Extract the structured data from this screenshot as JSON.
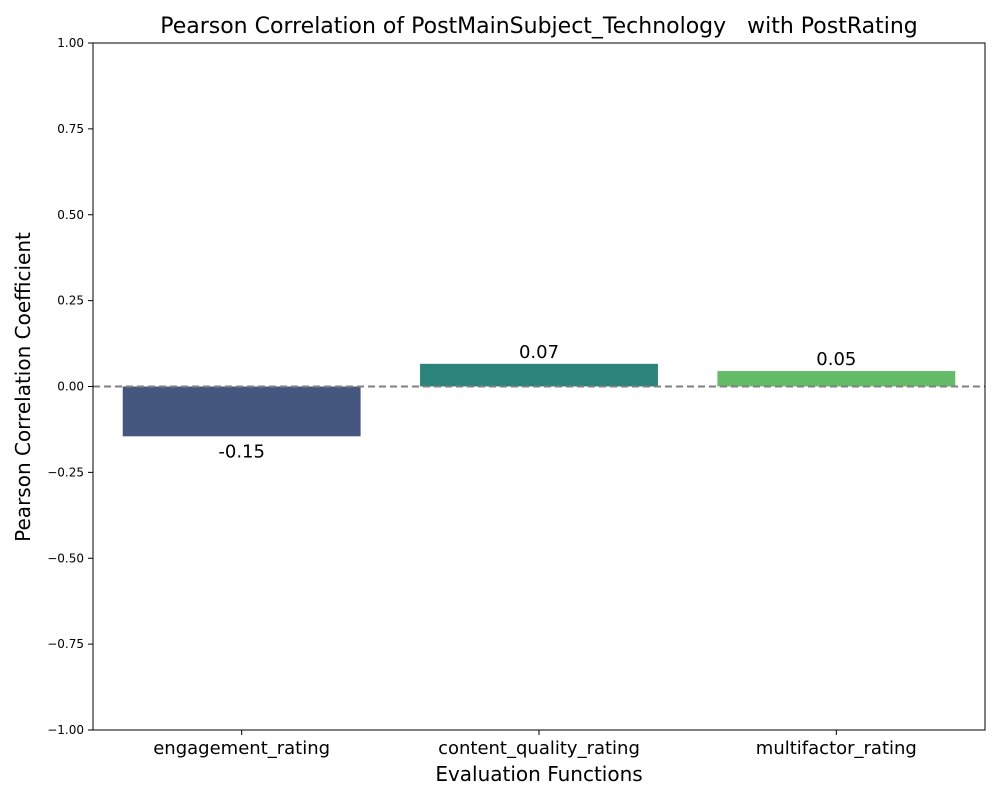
{
  "chart_data": {
    "type": "bar",
    "title": "Pearson Correlation of PostMainSubject_Technology   with PostRating",
    "xlabel": "Evaluation Functions",
    "ylabel": "Pearson Correlation Coefficient",
    "ylim": [
      -1.0,
      1.0
    ],
    "yticks": [
      -1.0,
      -0.75,
      -0.5,
      -0.25,
      0.0,
      0.25,
      0.5,
      0.75,
      1.0
    ],
    "ytick_labels": [
      "−1.00",
      "−0.75",
      "−0.50",
      "−0.25",
      "0.00",
      "0.25",
      "0.50",
      "0.75",
      "1.00"
    ],
    "categories": [
      "engagement_rating",
      "content_quality_rating",
      "multifactor_rating"
    ],
    "values": [
      -0.145,
      0.066,
      0.045
    ],
    "data_labels": [
      "-0.15",
      "0.07",
      "0.05"
    ],
    "colors": [
      "#46577f",
      "#2a847c",
      "#64bb68"
    ],
    "reference_line": {
      "value": 0.0,
      "style": "dashed",
      "color": "#808080"
    },
    "grid": false,
    "legend": "none"
  }
}
